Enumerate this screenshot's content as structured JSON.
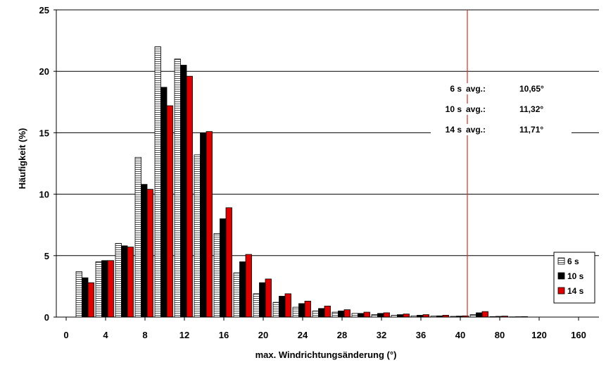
{
  "chart_data": {
    "type": "bar",
    "title": "",
    "xlabel": "max. Windrichtungsänderung (°)",
    "ylabel": "Häufigkeit (%)",
    "ylim": [
      0,
      25
    ],
    "y_ticks": [
      "0",
      "5",
      "10",
      "15",
      "20",
      "25"
    ],
    "x_ticks": [
      "0",
      "4",
      "8",
      "12",
      "16",
      "20",
      "24",
      "28",
      "32",
      "36",
      "40",
      "80",
      "120",
      "160"
    ],
    "categories": [
      "2",
      "4",
      "6",
      "8",
      "10",
      "12",
      "14",
      "16",
      "18",
      "20",
      "22",
      "24",
      "26",
      "28",
      "30",
      "32",
      "34",
      "36",
      "38",
      "40",
      "60",
      "100",
      "140"
    ],
    "grid": true,
    "legend_position": "bottom-right",
    "series": [
      {
        "name": "6 s",
        "color": "#ffffff",
        "pattern": "hatched",
        "values": [
          3.7,
          4.5,
          6.0,
          13.0,
          22.0,
          21.0,
          13.2,
          6.8,
          3.6,
          1.9,
          1.2,
          0.8,
          0.5,
          0.4,
          0.3,
          0.2,
          0.15,
          0.1,
          0.08,
          0.06,
          0.2,
          0.04,
          0.02
        ]
      },
      {
        "name": "10 s",
        "color": "#000000",
        "values": [
          3.2,
          4.6,
          5.8,
          10.8,
          18.7,
          20.5,
          15.0,
          8.0,
          4.5,
          2.8,
          1.7,
          1.1,
          0.7,
          0.5,
          0.3,
          0.3,
          0.2,
          0.15,
          0.1,
          0.08,
          0.35,
          0.06,
          0.03
        ]
      },
      {
        "name": "14 s",
        "color": "#dd0000",
        "values": [
          2.8,
          4.6,
          5.7,
          10.4,
          17.2,
          19.6,
          15.1,
          8.9,
          5.1,
          3.1,
          1.9,
          1.3,
          0.9,
          0.6,
          0.4,
          0.35,
          0.25,
          0.2,
          0.15,
          0.1,
          0.45,
          0.08,
          0.04
        ]
      }
    ],
    "reference_line": {
      "color": "#c0392b"
    },
    "annotations": [
      {
        "label": "6 s",
        "avg_label": "avg.:",
        "value": "10,65°"
      },
      {
        "label": "10 s",
        "avg_label": "avg.:",
        "value": "11,32°"
      },
      {
        "label": "14 s",
        "avg_label": "avg.:",
        "value": "11,71°"
      }
    ]
  }
}
